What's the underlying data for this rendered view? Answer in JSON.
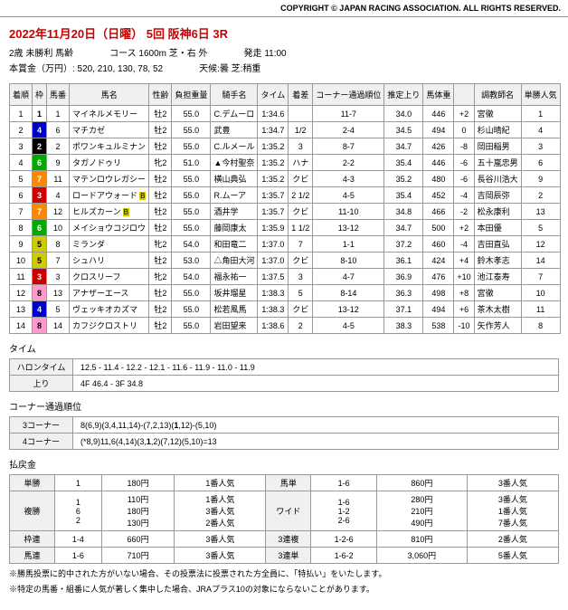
{
  "copyright": "COPYRIGHT © JAPAN RACING ASSOCIATION. ALL RIGHTS RESERVED.",
  "date": "2022年11月20日（日曜） 5回 阪神6日 3R",
  "meta": {
    "class": "2歳 未勝利 馬齢",
    "course": "コース 1600m 芝・右 外",
    "start": "発走 11:00",
    "prize": "本賞金（万円）: 520, 210, 130, 78, 52",
    "weather": "天候:曇 芝:稍重"
  },
  "cols": [
    "着順",
    "枠",
    "馬番",
    "馬名",
    "性齢",
    "負担重量",
    "騎手名",
    "タイム",
    "着差",
    "コーナー通過順位",
    "推定上り",
    "馬体重",
    "",
    "調教師名",
    "単勝人気"
  ],
  "results": [
    {
      "rank": "1",
      "waku": "1",
      "wc": "w1",
      "num": "1",
      "horse": "マイネルメモリー",
      "sex": "牡2",
      "wt": "55.0",
      "jockey": "C.デムーロ",
      "time": "1:34.6",
      "margin": "",
      "corner": "11-7",
      "agari": "34.0",
      "bw": "446",
      "bwd": "+2",
      "trainer": "宮徹",
      "pop": "1"
    },
    {
      "rank": "2",
      "waku": "4",
      "wc": "w4",
      "num": "6",
      "horse": "マチカゼ",
      "sex": "牡2",
      "wt": "55.0",
      "jockey": "武豊",
      "time": "1:34.7",
      "margin": "1/2",
      "corner": "2-4",
      "agari": "34.5",
      "bw": "494",
      "bwd": "0",
      "trainer": "杉山晴紀",
      "pop": "4"
    },
    {
      "rank": "3",
      "waku": "2",
      "wc": "w2",
      "num": "2",
      "horse": "ポワンキュルミナン",
      "sex": "牡2",
      "wt": "55.0",
      "jockey": "C.ルメール",
      "time": "1:35.2",
      "margin": "3",
      "corner": "8-7",
      "agari": "34.7",
      "bw": "426",
      "bwd": "-8",
      "trainer": "岡田稲男",
      "pop": "3"
    },
    {
      "rank": "4",
      "waku": "6",
      "wc": "w6",
      "num": "9",
      "horse": "タガノドゥリ",
      "sex": "牝2",
      "wt": "51.0",
      "jockey": "▲今村聖奈",
      "time": "1:35.2",
      "margin": "ハナ",
      "corner": "2-2",
      "agari": "35.4",
      "bw": "446",
      "bwd": "-6",
      "trainer": "五十嵐忠男",
      "pop": "6"
    },
    {
      "rank": "5",
      "waku": "7",
      "wc": "w7",
      "num": "11",
      "horse": "マテンロウレガシー",
      "sex": "牡2",
      "wt": "55.0",
      "jockey": "横山典弘",
      "time": "1:35.2",
      "margin": "クビ",
      "corner": "4-3",
      "agari": "35.2",
      "bw": "480",
      "bwd": "-6",
      "trainer": "長谷川浩大",
      "pop": "9"
    },
    {
      "rank": "6",
      "waku": "3",
      "wc": "w3",
      "num": "4",
      "horse": "ロードアウォード",
      "b": true,
      "sex": "牡2",
      "wt": "55.0",
      "jockey": "R.ムーア",
      "time": "1:35.7",
      "margin": "2 1/2",
      "corner": "4-5",
      "agari": "35.4",
      "bw": "452",
      "bwd": "-4",
      "trainer": "吉岡辰弥",
      "pop": "2"
    },
    {
      "rank": "7",
      "waku": "7",
      "wc": "w7",
      "num": "12",
      "horse": "ヒルズカーン",
      "b": true,
      "sex": "牡2",
      "wt": "55.0",
      "jockey": "酒井学",
      "time": "1:35.7",
      "margin": "クビ",
      "corner": "11-10",
      "agari": "34.8",
      "bw": "466",
      "bwd": "-2",
      "trainer": "松永康利",
      "pop": "13"
    },
    {
      "rank": "8",
      "waku": "6",
      "wc": "w6",
      "num": "10",
      "horse": "メイショウコジロウ",
      "sex": "牡2",
      "wt": "55.0",
      "jockey": "藤岡康太",
      "time": "1:35.9",
      "margin": "1 1/2",
      "corner": "13-12",
      "agari": "34.7",
      "bw": "500",
      "bwd": "+2",
      "trainer": "本田優",
      "pop": "5"
    },
    {
      "rank": "9",
      "waku": "5",
      "wc": "w5",
      "num": "8",
      "horse": "ミランダ",
      "sex": "牝2",
      "wt": "54.0",
      "jockey": "和田竜二",
      "time": "1:37.0",
      "margin": "7",
      "corner": "1-1",
      "agari": "37.2",
      "bw": "460",
      "bwd": "-4",
      "trainer": "吉田直弘",
      "pop": "12"
    },
    {
      "rank": "10",
      "waku": "5",
      "wc": "w5",
      "num": "7",
      "horse": "シュハリ",
      "sex": "牡2",
      "wt": "53.0",
      "jockey": "△角田大河",
      "time": "1:37.0",
      "margin": "クビ",
      "corner": "8-10",
      "agari": "36.1",
      "bw": "424",
      "bwd": "+4",
      "trainer": "鈴木孝志",
      "pop": "14"
    },
    {
      "rank": "11",
      "waku": "3",
      "wc": "w3",
      "num": "3",
      "horse": "クロスリーフ",
      "sex": "牝2",
      "wt": "54.0",
      "jockey": "福永祐一",
      "time": "1:37.5",
      "margin": "3",
      "corner": "4-7",
      "agari": "36.9",
      "bw": "476",
      "bwd": "+10",
      "trainer": "池江泰寿",
      "pop": "7"
    },
    {
      "rank": "12",
      "waku": "8",
      "wc": "w8",
      "num": "13",
      "horse": "アナザーエース",
      "sex": "牡2",
      "wt": "55.0",
      "jockey": "坂井瑠星",
      "time": "1:38.3",
      "margin": "5",
      "corner": "8-14",
      "agari": "36.3",
      "bw": "498",
      "bwd": "+8",
      "trainer": "宮徹",
      "pop": "10"
    },
    {
      "rank": "13",
      "waku": "4",
      "wc": "w4",
      "num": "5",
      "horse": "ヴェッキオカズマ",
      "sex": "牡2",
      "wt": "55.0",
      "jockey": "松若風馬",
      "time": "1:38.3",
      "margin": "クビ",
      "corner": "13-12",
      "agari": "37.1",
      "bw": "494",
      "bwd": "+6",
      "trainer": "茶木太樹",
      "pop": "11"
    },
    {
      "rank": "14",
      "waku": "8",
      "wc": "w8",
      "num": "14",
      "horse": "カフジクロストリ",
      "sex": "牡2",
      "wt": "55.0",
      "jockey": "岩田望来",
      "time": "1:38.6",
      "margin": "2",
      "corner": "4-5",
      "agari": "38.3",
      "bw": "538",
      "bwd": "-10",
      "trainer": "矢作芳人",
      "pop": "8"
    }
  ],
  "time_section": {
    "title": "タイム",
    "rows": [
      {
        "label": "ハロンタイム",
        "val": "12.5 - 11.4 - 12.2 - 12.1 - 11.6 - 11.9 - 11.0 - 11.9"
      },
      {
        "label": "上り",
        "val": "4F 46.4 - 3F 34.8"
      }
    ]
  },
  "corner_section": {
    "title": "コーナー通過順位",
    "rows": [
      {
        "label": "3コーナー",
        "val": "8(6,9)(3,4,11,14)-(7,2,13)(1,12)-(5,10)"
      },
      {
        "label": "4コーナー",
        "val": "(*8,9)11,6(4,14)(3,1,2)(7,12)(5,10)=13"
      }
    ]
  },
  "payout_section": {
    "title": "払戻金",
    "rows": [
      {
        "t": "単勝",
        "c1": "1",
        "c2": "180円",
        "c3": "1番人気",
        "t2": "馬単",
        "c4": "1-6",
        "c5": "860円",
        "c6": "3番人気"
      },
      {
        "t": "複勝",
        "c1": "1\n6\n2",
        "c2": "110円\n180円\n130円",
        "c3": "1番人気\n3番人気\n2番人気",
        "t2": "ワイド",
        "c4": "1-6\n1-2\n2-6",
        "c5": "280円\n210円\n490円",
        "c6": "3番人気\n1番人気\n7番人気"
      },
      {
        "t": "枠連",
        "c1": "1-4",
        "c2": "660円",
        "c3": "3番人気",
        "t2": "3連複",
        "c4": "1-2-6",
        "c5": "810円",
        "c6": "2番人気"
      },
      {
        "t": "馬連",
        "c1": "1-6",
        "c2": "710円",
        "c3": "3番人気",
        "t2": "3連単",
        "c4": "1-6-2",
        "c5": "3,060円",
        "c6": "5番人気"
      }
    ]
  },
  "notes": [
    "※勝馬投票に的中された方がいない場合、その投票法に投票された方全員に、「特払い」をいたします。",
    "※特定の馬番・組番に人気が著しく集中した場合、JRAプラス10の対象にならないことがあります。"
  ]
}
